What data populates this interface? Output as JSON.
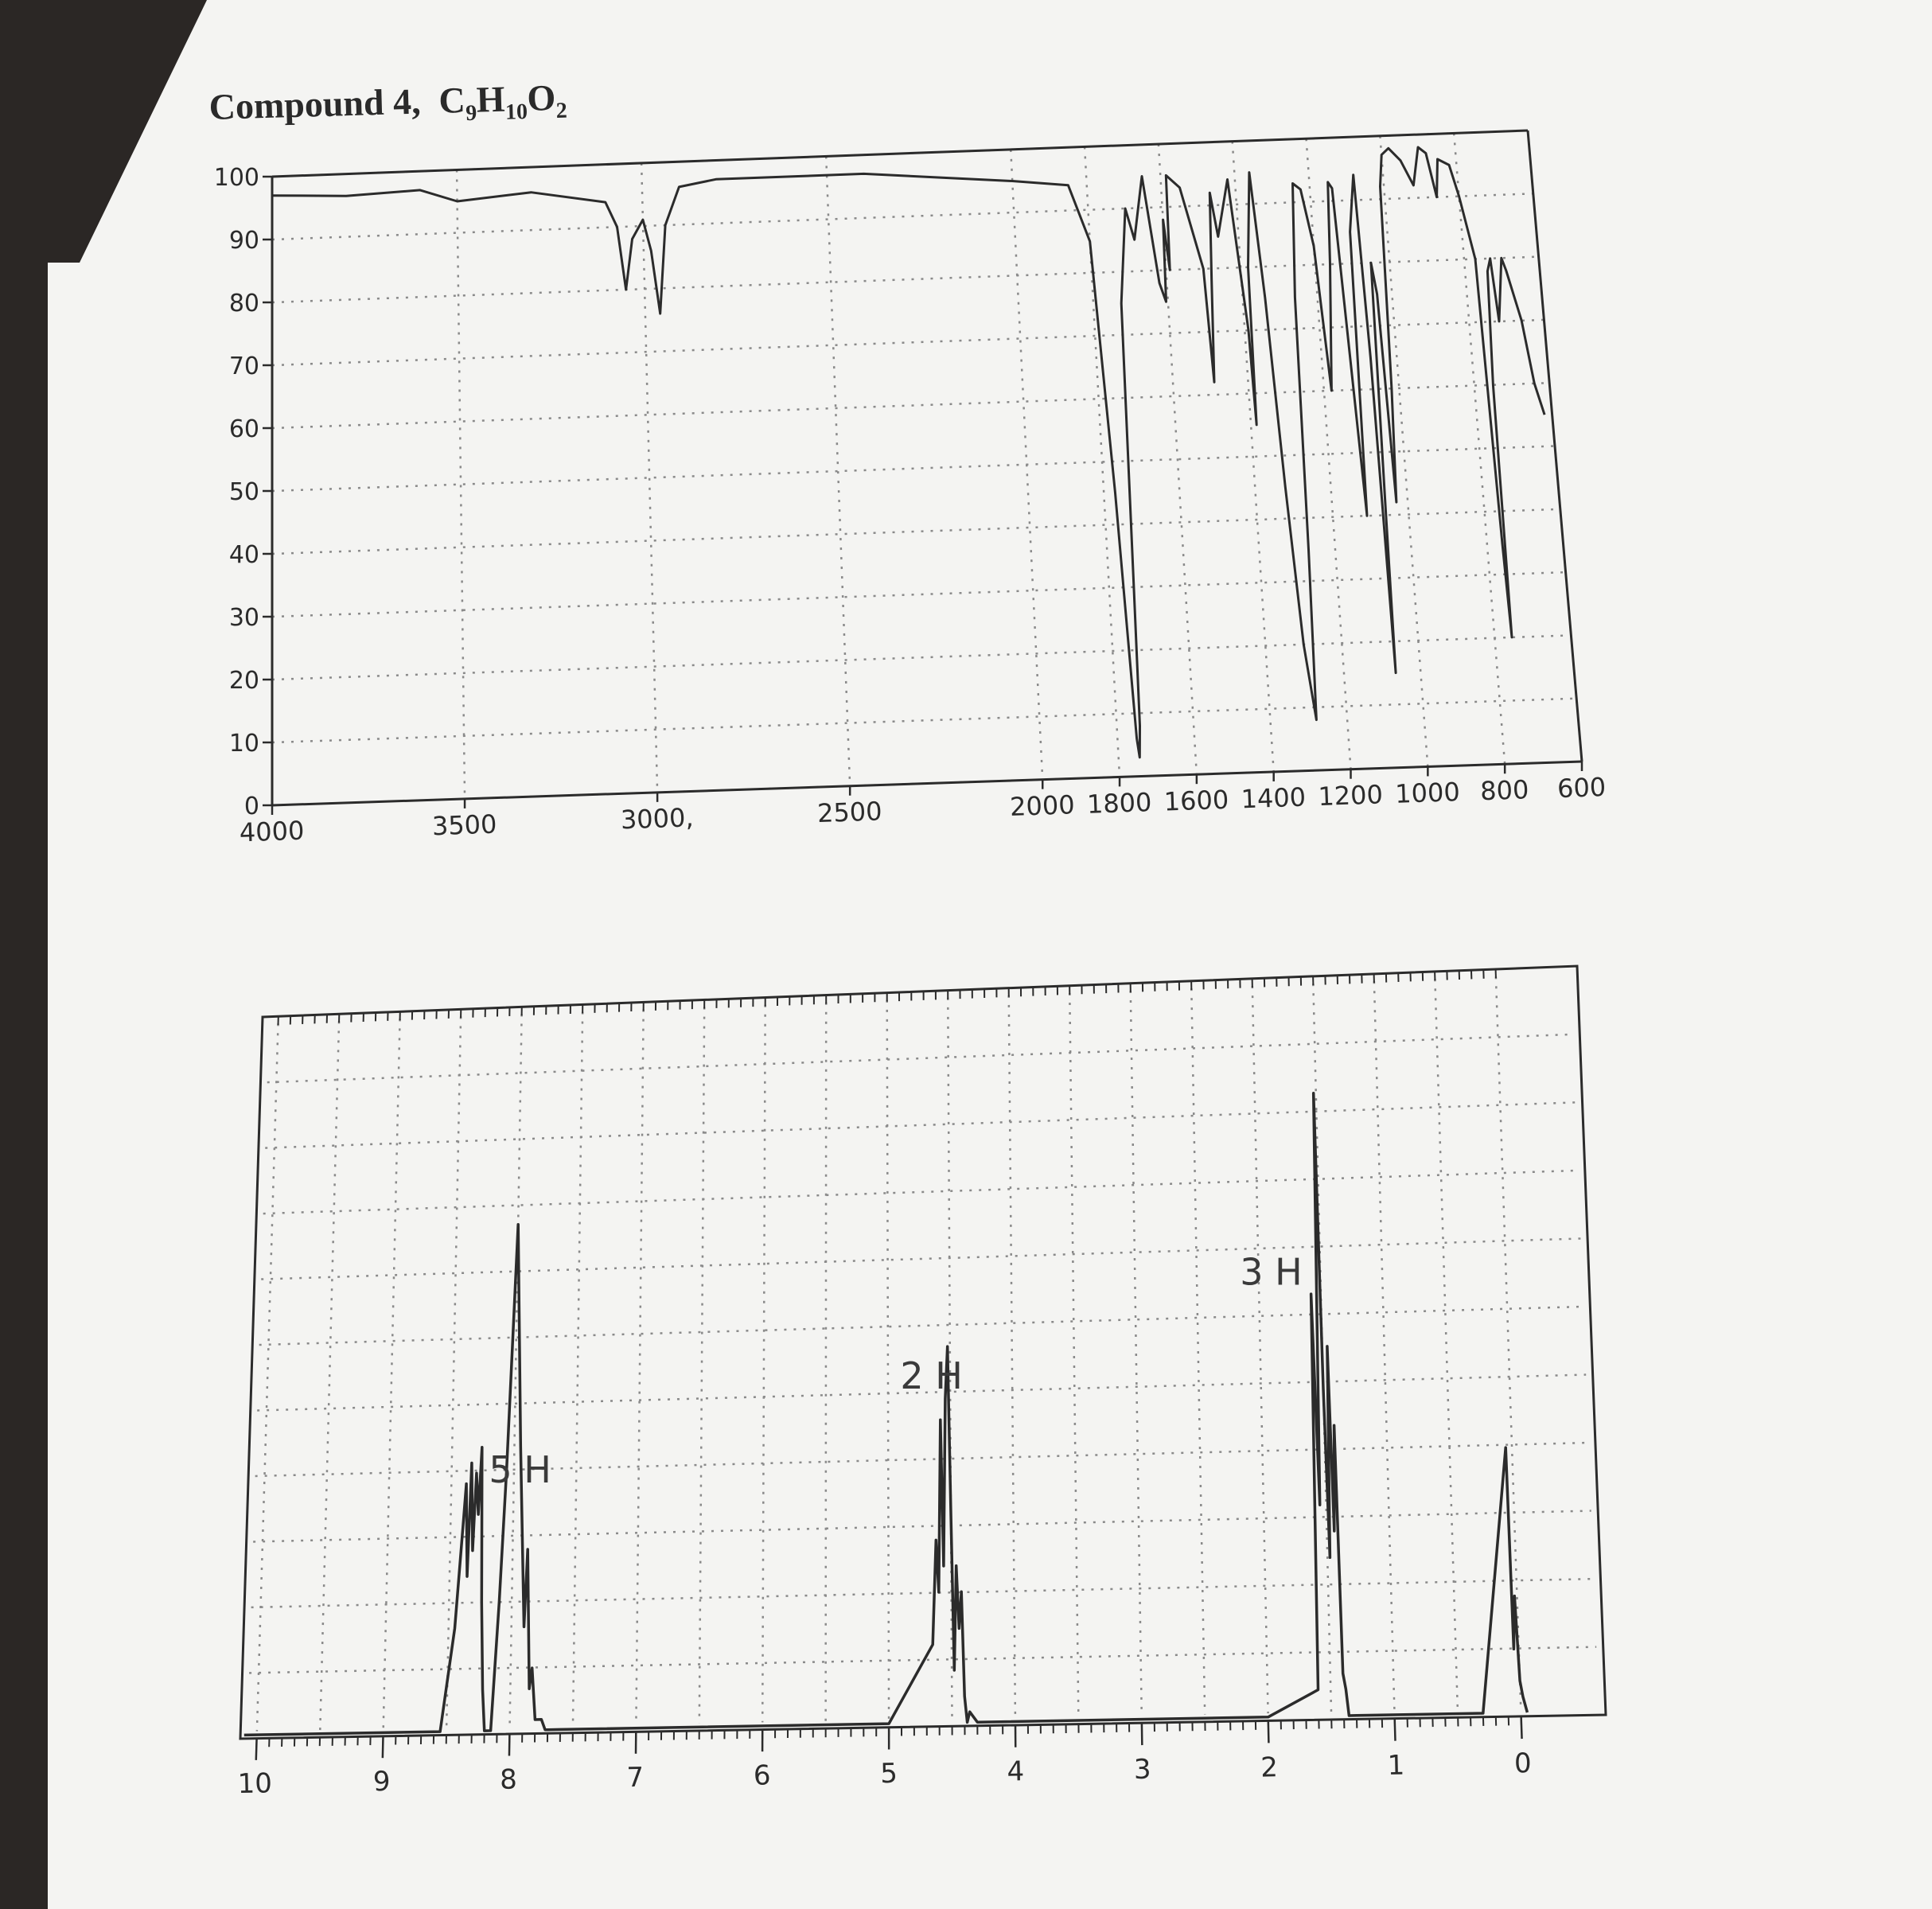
{
  "page": {
    "title_text": "Compound 4,",
    "formula": {
      "c": "C",
      "c_n": "9",
      "h": "H",
      "h_n": "10",
      "o": "O",
      "o_n": "2"
    },
    "colors": {
      "paper": "#f4f4f2",
      "ink": "#2b2b2b",
      "grid": "#8a8a8a",
      "background": "#2b2725"
    }
  },
  "chart_data": [
    {
      "type": "line",
      "kind": "IR spectrum",
      "xlim": [
        4000,
        600
      ],
      "ylim": [
        0,
        100
      ],
      "x_ticks": [
        4000,
        3500,
        3000,
        2500,
        2000,
        1800,
        1600,
        1400,
        1200,
        1000,
        800,
        600
      ],
      "x_tick_labels": [
        "4000",
        "3500",
        "3000,",
        "2500",
        "2000",
        "1800",
        "1600",
        "1400",
        "1200",
        "1000",
        "800",
        "600"
      ],
      "y_ticks": [
        0,
        10,
        20,
        30,
        40,
        50,
        60,
        70,
        80,
        90,
        100
      ],
      "y_tick_labels": [
        "0",
        "10",
        "20",
        "30",
        "40",
        "50",
        "60",
        "70",
        "80",
        "90",
        "100"
      ],
      "grid": true,
      "series": [
        {
          "x": [
            4000,
            3800,
            3600,
            3500,
            3300,
            3100,
            3070,
            3050,
            3030,
            3000,
            2980,
            2960,
            2940,
            2900,
            2800,
            2600,
            2400,
            2200,
            2000,
            1850,
            1800,
            1770,
            1750,
            1745,
            1740,
            1735,
            1725,
            1700,
            1680,
            1650,
            1620,
            1605,
            1600,
            1590,
            1585,
            1550,
            1500,
            1490,
            1480,
            1470,
            1455,
            1420,
            1390,
            1385,
            1380,
            1360,
            1340,
            1320,
            1300,
            1280,
            1270,
            1260,
            1245,
            1225,
            1200,
            1180,
            1160,
            1150,
            1140,
            1110,
            1100,
            1080,
            1070,
            1065,
            1060,
            1050,
            1040,
            1030,
            1020,
            1010,
            1000,
            980,
            950,
            920,
            900,
            880,
            860,
            850,
            820,
            800,
            770,
            760,
            755,
            750,
            740,
            730,
            720,
            710,
            700,
            690,
            660,
            640,
            620
          ],
          "y": [
            97,
            96.5,
            97,
            95,
            96,
            94,
            90,
            80,
            88,
            91,
            86,
            76,
            90,
            96,
            97,
            97,
            97,
            96,
            95,
            94,
            85,
            45,
            6,
            3,
            8,
            30,
            75,
            90,
            85,
            95,
            78,
            75,
            88,
            80,
            95,
            93,
            80,
            62,
            78,
            92,
            85,
            94,
            70,
            55,
            80,
            95,
            75,
            45,
            20,
            8,
            35,
            75,
            93,
            92,
            83,
            60,
            80,
            93,
            92,
            40,
            85,
            94,
            65,
            15,
            40,
            80,
            75,
            42,
            60,
            92,
            97,
            98,
            96,
            92,
            98,
            97,
            90,
            96,
            95,
            90,
            80,
            35,
            20,
            60,
            78,
            80,
            70,
            75,
            80,
            78,
            70,
            60,
            55
          ]
        }
      ]
    },
    {
      "type": "line",
      "kind": "1H NMR spectrum",
      "xlim": [
        10,
        0
      ],
      "x_ticks": [
        10,
        9,
        8,
        7,
        6,
        5,
        4,
        3,
        2,
        1,
        0
      ],
      "x_tick_labels": [
        "10",
        "9",
        "8",
        "7",
        "6",
        "5",
        "4",
        "3",
        "2",
        "1",
        "0"
      ],
      "grid": true,
      "annotations": [
        {
          "text": "5 H",
          "x": 7.95,
          "y": 0.48
        },
        {
          "text": "2 H",
          "x": 4.65,
          "y": 0.64
        },
        {
          "text": "3 H",
          "x": 1.9,
          "y": 0.82
        }
      ],
      "series": [
        {
          "x": [
            10.1,
            8.55,
            8.45,
            8.4,
            8.38,
            8.36,
            8.34,
            8.32,
            8.3,
            8.28,
            8.26,
            8.24,
            8.22,
            8.2,
            8.15,
            8.1,
            8.06,
            8.0,
            7.95,
            7.9,
            7.88,
            7.85,
            7.83,
            7.8,
            7.75,
            7.72,
            7.7,
            7.6,
            5.0,
            4.65,
            4.62,
            4.6,
            4.58,
            4.56,
            4.54,
            4.52,
            4.5,
            4.48,
            4.46,
            4.44,
            4.42,
            4.4,
            4.38,
            4.36,
            4.3,
            2.0,
            1.6,
            1.58,
            1.55,
            1.52,
            1.5,
            1.48,
            1.46,
            1.44,
            1.42,
            1.4,
            1.38,
            1.36,
            1.3,
            0.3,
            0.05,
            0.04,
            0.02,
            0.0,
            -0.02,
            -0.05
          ],
          "y": [
            0.0,
            0.0,
            0.2,
            0.4,
            0.48,
            0.3,
            0.52,
            0.35,
            0.5,
            0.42,
            0.55,
            0.25,
            0.08,
            0.0,
            0.0,
            0.25,
            0.5,
            0.98,
            0.55,
            0.2,
            0.35,
            0.08,
            0.12,
            0.02,
            0.02,
            0.0,
            0.0,
            0.0,
            0.0,
            0.15,
            0.35,
            0.25,
            0.58,
            0.3,
            0.62,
            0.72,
            0.4,
            0.1,
            0.3,
            0.18,
            0.25,
            0.05,
            0.0,
            0.02,
            0.0,
            0.0,
            0.05,
            0.8,
            0.4,
            1.18,
            0.62,
            0.3,
            0.7,
            0.35,
            0.55,
            0.08,
            0.05,
            0.0,
            0.0,
            0.0,
            0.5,
            0.12,
            0.22,
            0.06,
            0.03,
            0.0
          ]
        }
      ]
    }
  ]
}
